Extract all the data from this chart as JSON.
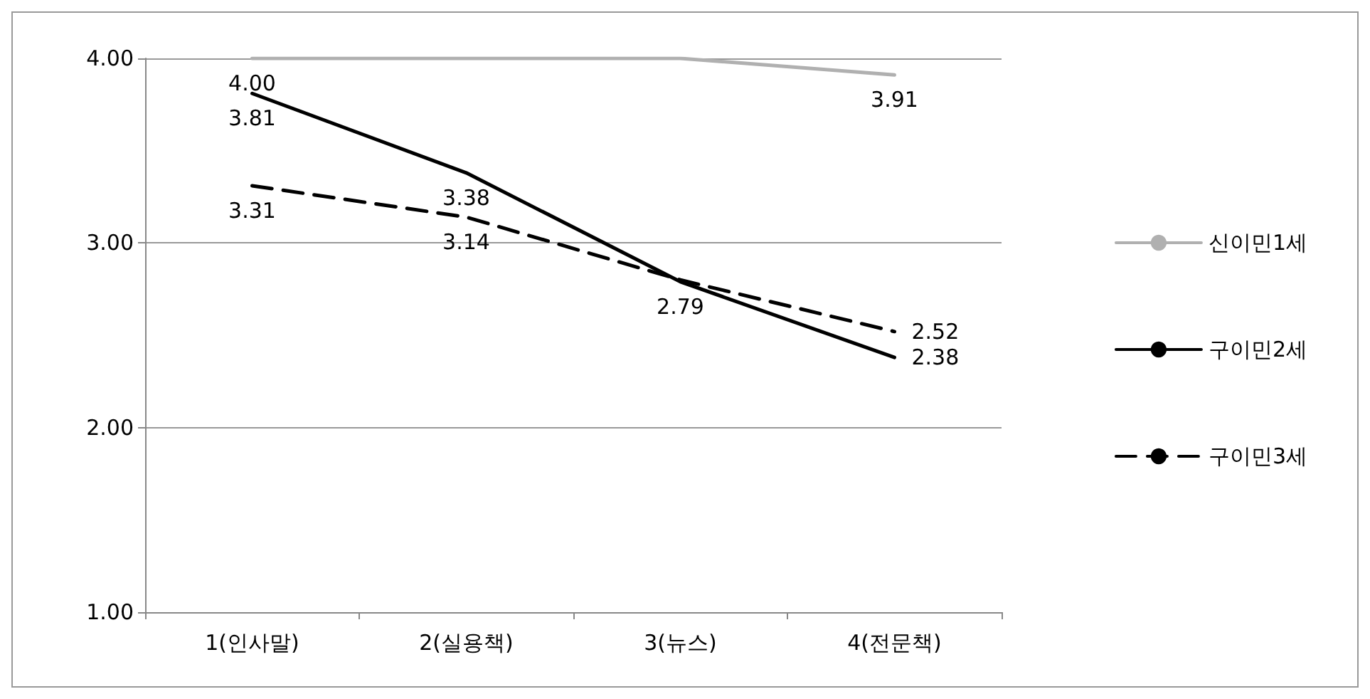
{
  "chart_data": {
    "type": "line",
    "categories": [
      "1(인사말)",
      "2(실용책)",
      "3(뉴스)",
      "4(전문책)"
    ],
    "series": [
      {
        "name": "신이민1세",
        "color": "#b0b0b0",
        "values": [
          4.0,
          4.0,
          4.0,
          3.91
        ],
        "value_labels": [
          "4.00",
          null,
          null,
          "3.91"
        ]
      },
      {
        "name": "구이민2세",
        "color": "#000000",
        "values": [
          3.81,
          3.38,
          2.79,
          2.38
        ],
        "value_labels": [
          "3.81",
          "3.38",
          "2.79",
          "2.38"
        ]
      },
      {
        "name": "구이민3세",
        "color": "#000000",
        "values": [
          3.31,
          3.14,
          2.8,
          2.52
        ],
        "value_labels": [
          "3.31",
          "3.14",
          null,
          "2.52"
        ],
        "line_style": "dashed"
      }
    ],
    "ylim": [
      1,
      4
    ],
    "yticks": [
      {
        "value": 1,
        "label": "1.00"
      },
      {
        "value": 2,
        "label": "2.00"
      },
      {
        "value": 3,
        "label": "3.00"
      },
      {
        "value": 4,
        "label": "4.00"
      }
    ],
    "grid": "y",
    "legend": "right",
    "marker": "none"
  }
}
